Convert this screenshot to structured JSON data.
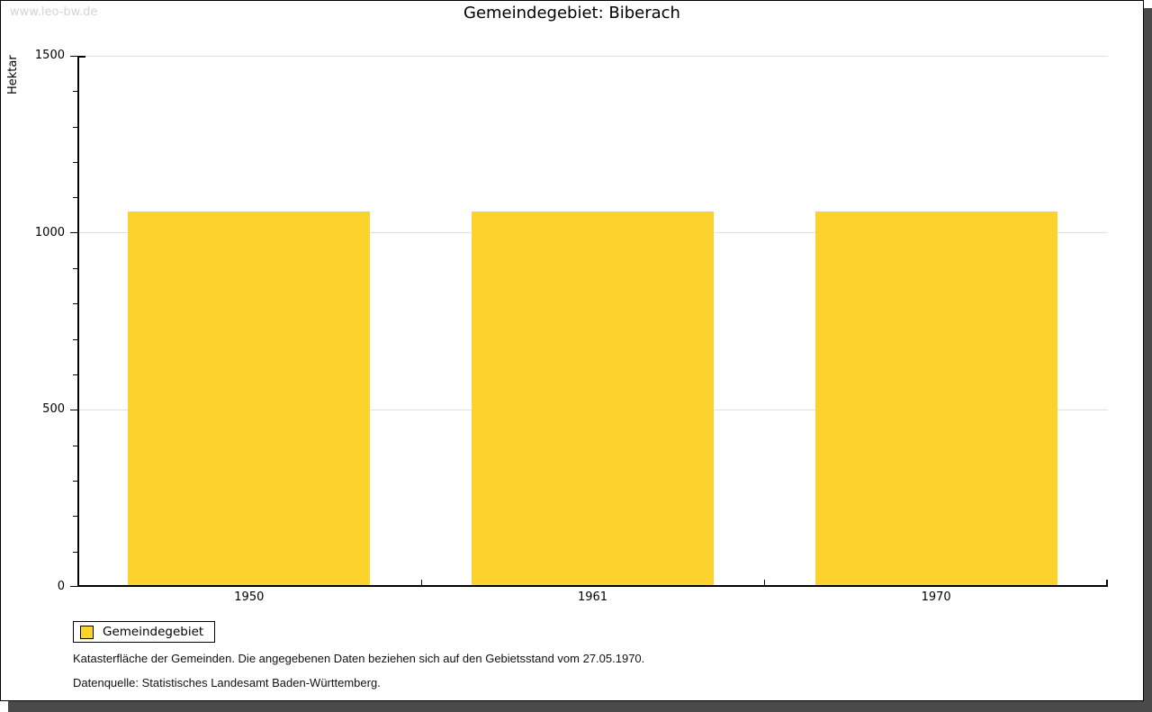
{
  "watermark": "www.leo-bw.de",
  "title": "Gemeindegebiet: Biberach",
  "chart_data": {
    "type": "bar",
    "title": "Gemeindegebiet: Biberach",
    "categories": [
      "1950",
      "1961",
      "1970"
    ],
    "series": [
      {
        "name": "Gemeindegebiet",
        "values": [
          1060,
          1060,
          1060
        ]
      }
    ],
    "xlabel": "",
    "ylabel": "Hektar",
    "ylim": [
      0,
      1500
    ],
    "y_major_ticks": [
      0,
      500,
      1000,
      1500
    ],
    "y_minor_step": 100,
    "grid": "horizontal-major-only",
    "legend_position": "bottom-left",
    "bar_color": "#FCD32D"
  },
  "legend": {
    "items": [
      {
        "label": "Gemeindegebiet",
        "color": "#FCD32D"
      }
    ]
  },
  "footnotes": [
    "Katasterfläche der Gemeinden. Die angegebenen Daten beziehen sich auf den Gebietsstand vom 27.05.1970.",
    "Datenquelle: Statistisches Landesamt Baden-Württemberg."
  ],
  "colors": {
    "bar": "#FCD32D",
    "grid": "#E0E0E0",
    "axis": "#000000",
    "shadow": "#4A4A4A",
    "watermark": "#D4D4D4",
    "background": "#FFFFFF"
  }
}
